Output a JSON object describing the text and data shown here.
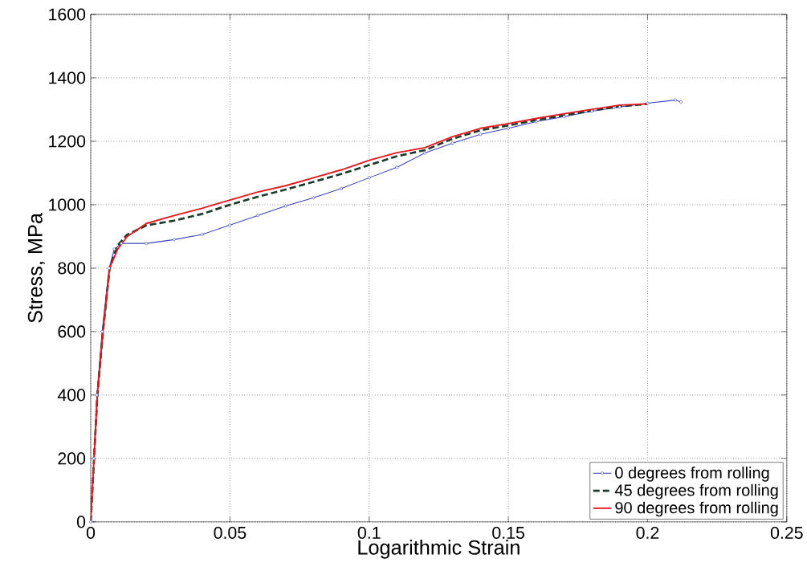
{
  "chart_data": {
    "type": "line",
    "xlabel": "Logarithmic Strain",
    "ylabel": "Stress, MPa",
    "xlim": [
      0,
      0.25
    ],
    "ylim": [
      0,
      1600
    ],
    "xticks": [
      0,
      0.05,
      0.1,
      0.15,
      0.2,
      0.25
    ],
    "yticks": [
      0,
      200,
      400,
      600,
      800,
      1000,
      1200,
      1400,
      1600
    ],
    "grid": true,
    "legend": "bottom right",
    "series": [
      {
        "name": "0 degrees from rolling",
        "color": "#3b44b5",
        "marker": "circle",
        "line_style": "solid",
        "x": [
          0,
          0.0011,
          0.0022,
          0.0041,
          0.0066,
          0.0085,
          0.011,
          0.02,
          0.03,
          0.04,
          0.05,
          0.06,
          0.07,
          0.08,
          0.09,
          0.1,
          0.11,
          0.12,
          0.13,
          0.14,
          0.15,
          0.16,
          0.17,
          0.18,
          0.19,
          0.2,
          0.21,
          0.212
        ],
        "values": [
          0,
          200,
          400,
          600,
          800,
          860,
          878,
          878,
          890,
          906,
          936,
          966,
          996,
          1022,
          1051,
          1085,
          1118,
          1163,
          1194,
          1222,
          1241,
          1262,
          1278,
          1295,
          1308,
          1320,
          1330,
          1324
        ]
      },
      {
        "name": "45 degrees from rolling",
        "color": "#1a3a2a",
        "marker": "none",
        "line_style": "dashed",
        "x": [
          0,
          0.0012,
          0.0024,
          0.0044,
          0.0068,
          0.0095,
          0.013,
          0.02,
          0.03,
          0.04,
          0.05,
          0.06,
          0.07,
          0.08,
          0.09,
          0.1,
          0.11,
          0.12,
          0.13,
          0.14,
          0.15,
          0.16,
          0.17,
          0.18,
          0.19,
          0.2
        ],
        "values": [
          0,
          200,
          400,
          600,
          800,
          870,
          905,
          935,
          950,
          971,
          1000,
          1025,
          1048,
          1072,
          1097,
          1125,
          1153,
          1172,
          1208,
          1235,
          1250,
          1267,
          1282,
          1297,
          1310,
          1318
        ]
      },
      {
        "name": "90 degrees from rolling",
        "color": "#e8191e",
        "marker": "none",
        "line_style": "solid",
        "x": [
          0,
          0.0012,
          0.0024,
          0.0044,
          0.0068,
          0.0097,
          0.0131,
          0.02,
          0.03,
          0.04,
          0.05,
          0.06,
          0.07,
          0.08,
          0.09,
          0.1,
          0.11,
          0.12,
          0.13,
          0.14,
          0.15,
          0.16,
          0.17,
          0.18,
          0.19,
          0.2
        ],
        "values": [
          0,
          200,
          400,
          600,
          800,
          860,
          900,
          941,
          966,
          989,
          1015,
          1040,
          1060,
          1085,
          1110,
          1140,
          1164,
          1180,
          1215,
          1241,
          1256,
          1272,
          1287,
          1301,
          1314,
          1318
        ]
      }
    ]
  }
}
